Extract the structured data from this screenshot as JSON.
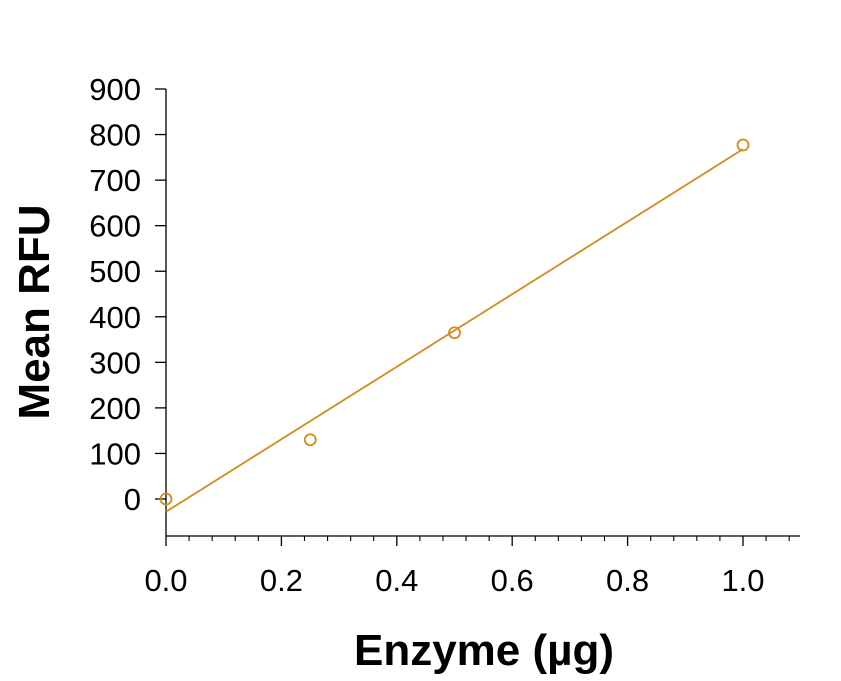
{
  "chart_data": {
    "type": "scatter",
    "title": "",
    "xlabel": "Enzyme (µg)",
    "ylabel": "Mean RFU",
    "xlim": [
      0,
      1.1
    ],
    "ylim": [
      -80,
      900
    ],
    "x_ticks": [
      0.0,
      0.2,
      0.4,
      0.6,
      0.8,
      1.0
    ],
    "x_tick_labels": [
      "0.0",
      "0.2",
      "0.4",
      "0.6",
      "0.8",
      "1.0"
    ],
    "x_minor_step": 0.04,
    "y_ticks": [
      0,
      100,
      200,
      300,
      400,
      500,
      600,
      700,
      800,
      900
    ],
    "y_tick_labels": [
      "0",
      "100",
      "200",
      "300",
      "400",
      "500",
      "600",
      "700",
      "800",
      "900"
    ],
    "grid": false,
    "legend": "none",
    "color": "#D68A1C",
    "series": [
      {
        "points": [
          {
            "x": 0.0,
            "y": 0
          },
          {
            "x": 0.25,
            "y": 130
          },
          {
            "x": 0.5,
            "y": 365
          },
          {
            "x": 1.0,
            "y": 777
          }
        ],
        "marker": "open-circle",
        "fit": {
          "type": "linear",
          "x_range": [
            0.0,
            1.0
          ],
          "y_start": -28,
          "y_end": 768
        }
      }
    ]
  }
}
